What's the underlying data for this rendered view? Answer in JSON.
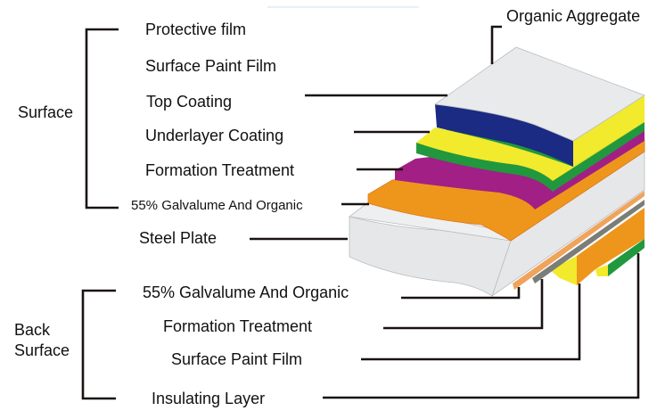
{
  "surface_group": {
    "label": "Surface",
    "items": [
      "Protective film",
      "Surface Paint Film",
      "Top Coating",
      "Underlayer Coating",
      "Formation Treatment",
      "55% Galvalume And Organic"
    ]
  },
  "steel_plate": "Steel Plate",
  "organic_aggregate": "Organic Aggregate",
  "back_group": {
    "label_line1": "Back",
    "label_line2": "Surface",
    "items": [
      "55% Galvalume And Organic",
      "Formation Treatment",
      "Surface Paint Film",
      "Insulating Layer"
    ]
  },
  "colors": {
    "top_white": "#e9eaeb",
    "top_coating_blue": "#1b2a82",
    "yellow": "#f2ea2c",
    "green": "#21983d",
    "purple": "#a21f86",
    "orange": "#ee961c",
    "steel": "#e6e7e9",
    "gray_strip": "#7b7d78",
    "thin_orange": "#f0a35a"
  }
}
